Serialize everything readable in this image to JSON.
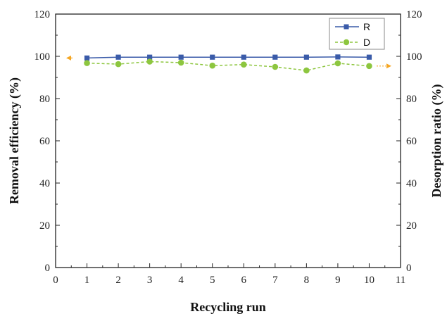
{
  "chart_data": {
    "type": "line",
    "xlabel": "Recycling run",
    "ylabel_left": "Removal efficiency (%)",
    "ylabel_right": "Desorption ratio (%)",
    "xlim": [
      0,
      11
    ],
    "ylim": [
      0,
      120
    ],
    "x_ticks": [
      "0",
      "1",
      "2",
      "3",
      "4",
      "5",
      "6",
      "7",
      "8",
      "9",
      "10",
      "11"
    ],
    "y_ticks": [
      "0",
      "20",
      "40",
      "60",
      "80",
      "100",
      "120"
    ],
    "x": [
      1,
      2,
      3,
      4,
      5,
      6,
      7,
      8,
      9,
      10
    ],
    "series": [
      {
        "name": "R",
        "axis": "left",
        "color": "#3a5ba9",
        "marker": "square",
        "line": "solid",
        "values": [
          99.2,
          99.6,
          99.6,
          99.6,
          99.6,
          99.6,
          99.6,
          99.6,
          99.7,
          99.6
        ]
      },
      {
        "name": "D",
        "axis": "right",
        "color": "#8dc63f",
        "marker": "circle",
        "line": "dashed",
        "values": [
          96.8,
          96.3,
          97.5,
          97.0,
          95.6,
          96.1,
          95.0,
          93.3,
          96.7,
          95.4
        ]
      }
    ],
    "axis_arrow_color": "#f5a623",
    "legend_position": "top-right",
    "grid": false
  }
}
